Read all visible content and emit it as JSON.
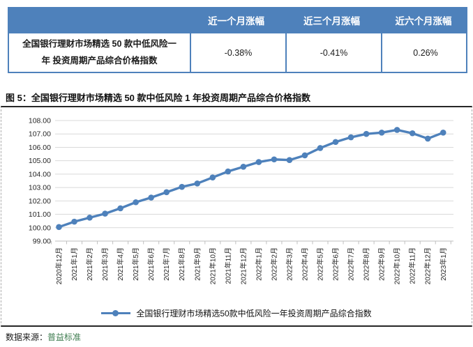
{
  "table": {
    "row_label": "全国银行理财市场精选 50 款中低风险一年 投资周期产品综合价格指数",
    "columns": [
      "近一个月涨幅",
      "近三个月涨幅",
      "近六个月涨幅"
    ],
    "values": [
      "-0.38%",
      "-0.41%",
      "0.26%"
    ]
  },
  "figure": {
    "title": "图 5：全国银行理财市场精选 50 款中低风险 1 年投资周期产品综合价格指数"
  },
  "source": {
    "label": "数据来源：",
    "name": "普益标准"
  },
  "colors": {
    "accent_blue": "#4E81BB",
    "grid": "#D9D9D9",
    "axis": "#BFBFBF",
    "tick_text": "#262626",
    "source_green": "#3E7C4F"
  },
  "chart_data": {
    "type": "line",
    "title": "全国银行理财市场精选 50 款中低风险 1 年投资周期产品综合价格指数",
    "categories": [
      "2020年12月",
      "2021年1月",
      "2021年2月",
      "2021年3月",
      "2021年4月",
      "2021年5月",
      "2021年6月",
      "2021年7月",
      "2021年8月",
      "2021年9月",
      "2021年10月",
      "2021年11月",
      "2021年12月",
      "2022年1月",
      "2022年2月",
      "2022年3月",
      "2022年4月",
      "2022年5月",
      "2022年6月",
      "2022年7月",
      "2022年8月",
      "2022年9月",
      "2022年10月",
      "2022年11月",
      "2022年12月",
      "2023年1月"
    ],
    "series": [
      {
        "name": "全国银行理财市场精选50款中低风险一年投资周期产品综合指数",
        "values": [
          100.05,
          100.45,
          100.75,
          101.05,
          101.45,
          101.9,
          102.25,
          102.65,
          103.05,
          103.3,
          103.75,
          104.2,
          104.55,
          104.9,
          105.1,
          105.05,
          105.4,
          105.95,
          106.4,
          106.75,
          107.0,
          107.1,
          107.3,
          107.05,
          106.65,
          107.1
        ]
      }
    ],
    "xlabel": "",
    "ylabel": "",
    "ylim": [
      99,
      108
    ],
    "ytick_step": 1,
    "ytick_labels": [
      "99.00",
      "100.00",
      "101.00",
      "102.00",
      "103.00",
      "104.00",
      "105.00",
      "106.00",
      "107.00",
      "108.00"
    ],
    "grid": true,
    "legend_position": "bottom",
    "line_color": "#4E81BB",
    "marker": "circle"
  }
}
